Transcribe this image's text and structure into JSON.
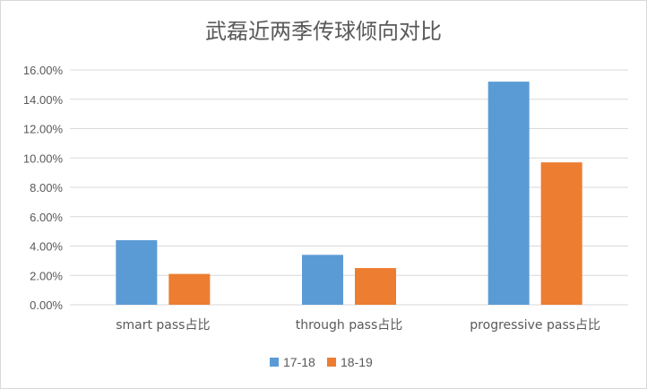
{
  "chart_data": {
    "type": "bar",
    "title": "武磊近两季传球倾向对比",
    "categories": [
      "smart pass占比",
      "through pass占比",
      "progressive pass占比"
    ],
    "series": [
      {
        "name": "17-18",
        "color": "#5B9BD5",
        "values": [
          4.4,
          3.4,
          15.2
        ]
      },
      {
        "name": "18-19",
        "color": "#ED7D31",
        "values": [
          2.1,
          2.5,
          9.7
        ]
      }
    ],
    "ylim": [
      0,
      16
    ],
    "ytick_step": 2,
    "y_tick_labels": [
      "0.00%",
      "2.00%",
      "4.00%",
      "6.00%",
      "8.00%",
      "10.00%",
      "12.00%",
      "14.00%",
      "16.00%"
    ],
    "grid": true,
    "legend_position": "bottom"
  }
}
